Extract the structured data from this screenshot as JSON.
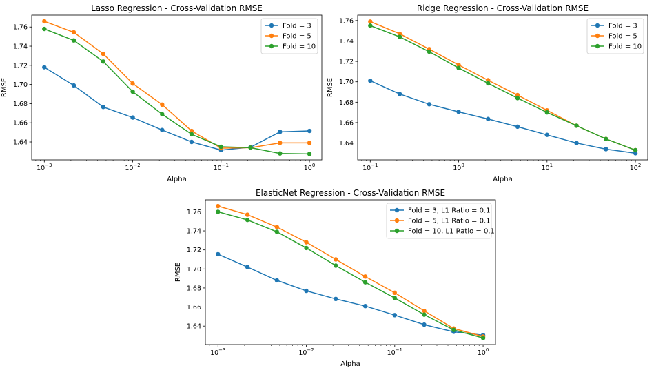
{
  "chart_data": [
    {
      "type": "line",
      "title": "Lasso Regression - Cross-Validation RMSE",
      "xlabel": "Alpha",
      "ylabel": "RMSE",
      "xscale": "log",
      "xlim": [
        0.00072,
        1.38
      ],
      "ylim": [
        1.6213,
        1.7724
      ],
      "xticks": [
        {
          "value": 0.001,
          "base": "10",
          "exp": "−3"
        },
        {
          "value": 0.01,
          "base": "10",
          "exp": "−2"
        },
        {
          "value": 0.1,
          "base": "10",
          "exp": "−1"
        },
        {
          "value": 1,
          "base": "10",
          "exp": "0"
        }
      ],
      "yticks": [
        {
          "value": 1.64,
          "label": "1.64"
        },
        {
          "value": 1.66,
          "label": "1.66"
        },
        {
          "value": 1.68,
          "label": "1.68"
        },
        {
          "value": 1.7,
          "label": "1.70"
        },
        {
          "value": 1.72,
          "label": "1.72"
        },
        {
          "value": 1.74,
          "label": "1.74"
        },
        {
          "value": 1.76,
          "label": "1.76"
        }
      ],
      "legend_position": "top-right",
      "x": [
        0.001,
        0.002154,
        0.004642,
        0.01,
        0.02154,
        0.04642,
        0.1,
        0.2154,
        0.4642,
        1.0
      ],
      "series": [
        {
          "name": "Fold = 3",
          "color": "#1f77b4",
          "values": [
            1.718,
            1.699,
            1.6765,
            1.6655,
            1.6525,
            1.64,
            1.6315,
            1.6345,
            1.6505,
            1.6515
          ]
        },
        {
          "name": "Fold = 5",
          "color": "#ff7f0e",
          "values": [
            1.766,
            1.7545,
            1.732,
            1.701,
            1.679,
            1.6515,
            1.6335,
            1.634,
            1.639,
            1.639
          ]
        },
        {
          "name": "Fold = 10",
          "color": "#2ca02c",
          "values": [
            1.758,
            1.746,
            1.724,
            1.6925,
            1.669,
            1.648,
            1.635,
            1.634,
            1.628,
            1.6275
          ]
        }
      ]
    },
    {
      "type": "line",
      "title": "Ridge Regression - Cross-Validation RMSE",
      "xlabel": "Alpha",
      "ylabel": "RMSE",
      "xscale": "log",
      "xlim": [
        0.072,
        138
      ],
      "ylim": [
        1.6235,
        1.7653
      ],
      "xticks": [
        {
          "value": 0.1,
          "base": "10",
          "exp": "−1"
        },
        {
          "value": 1,
          "base": "10",
          "exp": "0"
        },
        {
          "value": 10,
          "base": "10",
          "exp": "1"
        },
        {
          "value": 100,
          "base": "10",
          "exp": "2"
        }
      ],
      "yticks": [
        {
          "value": 1.64,
          "label": "1.64"
        },
        {
          "value": 1.66,
          "label": "1.66"
        },
        {
          "value": 1.68,
          "label": "1.68"
        },
        {
          "value": 1.7,
          "label": "1.70"
        },
        {
          "value": 1.72,
          "label": "1.72"
        },
        {
          "value": 1.74,
          "label": "1.74"
        },
        {
          "value": 1.76,
          "label": "1.76"
        }
      ],
      "legend_position": "top-right",
      "x": [
        0.1,
        0.2154,
        0.4642,
        1.0,
        2.154,
        4.642,
        10,
        21.54,
        46.42,
        100
      ],
      "series": [
        {
          "name": "Fold = 3",
          "color": "#1f77b4",
          "values": [
            1.701,
            1.688,
            1.678,
            1.6705,
            1.6635,
            1.656,
            1.648,
            1.64,
            1.634,
            1.63
          ]
        },
        {
          "name": "Fold = 5",
          "color": "#ff7f0e",
          "values": [
            1.759,
            1.747,
            1.732,
            1.7165,
            1.7015,
            1.687,
            1.672,
            1.657,
            1.644,
            1.633
          ]
        },
        {
          "name": "Fold = 10",
          "color": "#2ca02c",
          "values": [
            1.755,
            1.744,
            1.7295,
            1.7135,
            1.6985,
            1.684,
            1.67,
            1.657,
            1.644,
            1.633
          ]
        }
      ]
    },
    {
      "type": "line",
      "title": "ElasticNet Regression - Cross-Validation RMSE",
      "xlabel": "Alpha",
      "ylabel": "RMSE",
      "xscale": "log",
      "xlim": [
        0.00072,
        1.38
      ],
      "ylim": [
        1.6206,
        1.7726
      ],
      "xticks": [
        {
          "value": 0.001,
          "base": "10",
          "exp": "−3"
        },
        {
          "value": 0.01,
          "base": "10",
          "exp": "−2"
        },
        {
          "value": 0.1,
          "base": "10",
          "exp": "−1"
        },
        {
          "value": 1,
          "base": "10",
          "exp": "0"
        }
      ],
      "yticks": [
        {
          "value": 1.64,
          "label": "1.64"
        },
        {
          "value": 1.66,
          "label": "1.66"
        },
        {
          "value": 1.68,
          "label": "1.68"
        },
        {
          "value": 1.7,
          "label": "1.70"
        },
        {
          "value": 1.72,
          "label": "1.72"
        },
        {
          "value": 1.74,
          "label": "1.74"
        },
        {
          "value": 1.76,
          "label": "1.76"
        }
      ],
      "legend_position": "top-right",
      "x": [
        0.001,
        0.002154,
        0.004642,
        0.01,
        0.02154,
        0.04642,
        0.1,
        0.2154,
        0.4642,
        1.0
      ],
      "series": [
        {
          "name": "Fold = 3, L1 Ratio = 0.1",
          "color": "#1f77b4",
          "values": [
            1.7155,
            1.702,
            1.688,
            1.677,
            1.6685,
            1.661,
            1.6515,
            1.6415,
            1.634,
            1.6305
          ]
        },
        {
          "name": "Fold = 5, L1 Ratio = 0.1",
          "color": "#ff7f0e",
          "values": [
            1.766,
            1.757,
            1.744,
            1.728,
            1.71,
            1.692,
            1.675,
            1.656,
            1.6375,
            1.629
          ]
        },
        {
          "name": "Fold = 10, L1 Ratio = 0.1",
          "color": "#2ca02c",
          "values": [
            1.76,
            1.7515,
            1.739,
            1.722,
            1.7035,
            1.686,
            1.6695,
            1.652,
            1.636,
            1.6275
          ]
        }
      ]
    }
  ]
}
